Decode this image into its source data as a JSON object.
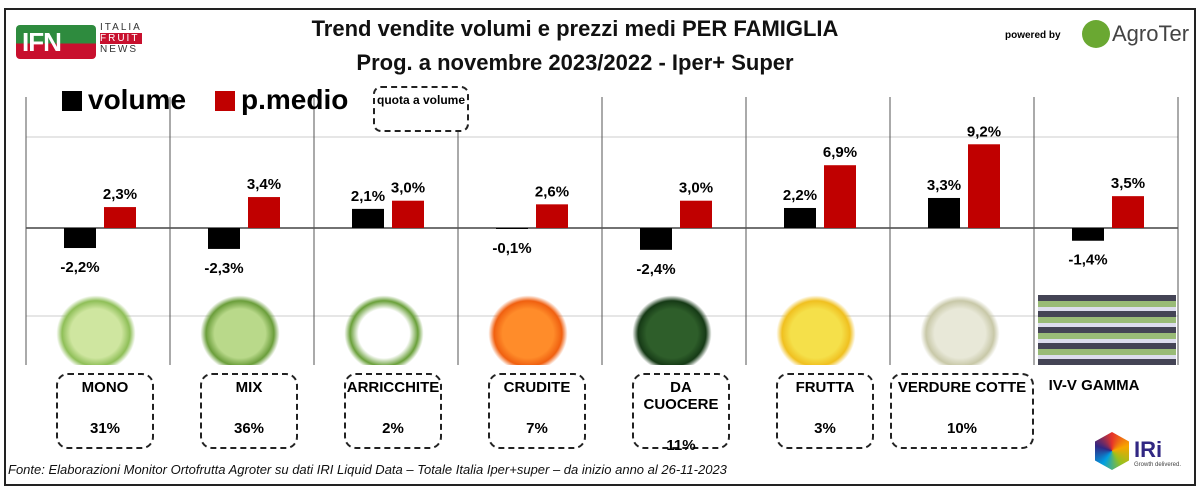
{
  "header": {
    "logo_main": "IFN",
    "logo_sub": [
      "ITALIA",
      "FRUIT",
      "NEWS"
    ],
    "powered_by": "powered by",
    "partner": "AgroTer"
  },
  "legend": {
    "volume": "volume",
    "price": "p.medio",
    "quota": "quota a volume"
  },
  "footer": "Fonte: Elaborazioni Monitor Ortofrutta Agroter su dati IRI Liquid Data – Totale Italia Iper+super –  da inizio anno al 26-11-2023",
  "iri": {
    "name": "IRi",
    "tagline": "Growth delivered."
  },
  "colors": {
    "volume": "#000000",
    "price": "#c00000"
  },
  "chart_data": {
    "type": "bar",
    "title": "Trend vendite volumi e prezzi medi PER FAMIGLIA",
    "subtitle": "Prog. a novembre 2023/2022 - Iper+ Super",
    "categories": [
      "MONO",
      "MIX",
      "ARRICCHITE",
      "CRUDITE",
      "DA CUOCERE",
      "FRUTTA",
      "VERDURE COTTE",
      "IV-V GAMMA"
    ],
    "quota": [
      "31%",
      "36%",
      "2%",
      "7%",
      "11%",
      "3%",
      "10%",
      ""
    ],
    "series": [
      {
        "name": "volume",
        "values": [
          -2.2,
          -2.3,
          2.1,
          -0.1,
          -2.4,
          2.2,
          3.3,
          -1.4
        ],
        "labels": [
          "-2,2%",
          "-2,3%",
          "2,1%",
          "-0,1%",
          "-2,4%",
          "2,2%",
          "3,3%",
          "-1,4%"
        ]
      },
      {
        "name": "p.medio",
        "values": [
          2.3,
          3.4,
          3.0,
          2.6,
          3.0,
          6.9,
          9.2,
          3.5
        ],
        "labels": [
          "2,3%",
          "3,4%",
          "3,0%",
          "2,6%",
          "3,0%",
          "6,9%",
          "9,2%",
          "3,5%"
        ]
      }
    ],
    "ylim": [
      -10,
      10
    ],
    "grid": true,
    "legend_position": "top-left"
  }
}
